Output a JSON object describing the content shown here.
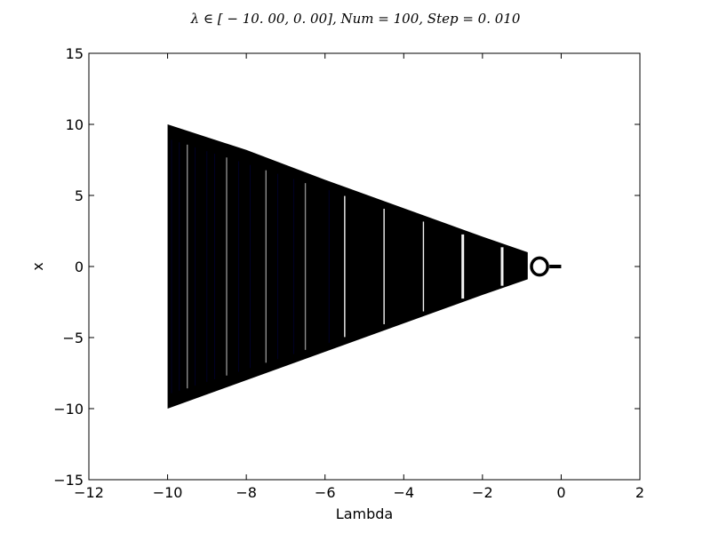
{
  "chart_data": {
    "type": "scatter",
    "title": "λ ∈ [ − 10. 00, 0. 00], Num = 100, Step = 0. 010",
    "xlabel": "Lambda",
    "ylabel": "x",
    "xlim": [
      -12,
      2
    ],
    "ylim": [
      -15,
      15
    ],
    "xticks": [
      -12,
      -10,
      -8,
      -6,
      -4,
      -2,
      0,
      2
    ],
    "yticks": [
      -15,
      -10,
      -5,
      0,
      5,
      10,
      15
    ],
    "xtick_labels": [
      "−12",
      "−10",
      "−8",
      "−6",
      "−4",
      "−2",
      "0",
      "2"
    ],
    "ytick_labels": [
      "−15",
      "−10",
      "−5",
      "0",
      "5",
      "10",
      "15"
    ],
    "grid": false,
    "point_color": "#000000",
    "accent_color": "#00007f",
    "series": [
      {
        "lambda_range": [
          -10.0,
          0.0
        ],
        "step": 0.01,
        "num": 100,
        "envelope": [
          {
            "lambda": -10.0,
            "x_min": -10.0,
            "x_max": 10.0
          },
          {
            "lambda": -8.0,
            "x_min": -8.0,
            "x_max": 8.2
          },
          {
            "lambda": -6.0,
            "x_min": -6.0,
            "x_max": 6.1
          },
          {
            "lambda": -4.0,
            "x_min": -4.0,
            "x_max": 4.1
          },
          {
            "lambda": -2.0,
            "x_min": -2.0,
            "x_max": 2.1
          },
          {
            "lambda": -0.85,
            "x_min": -0.9,
            "x_max": 1.0
          }
        ],
        "gaps_at_lambda": [
          -9.5,
          -8.5,
          -7.5,
          -6.5,
          -5.5,
          -4.5,
          -3.5,
          -2.5,
          -1.5
        ],
        "loop": {
          "lambda": [
            -0.8,
            -0.3
          ],
          "x": [
            -0.6,
            0.6
          ]
        },
        "tail": {
          "lambda": [
            -0.3,
            0.0
          ],
          "x": 0.0
        }
      }
    ]
  }
}
